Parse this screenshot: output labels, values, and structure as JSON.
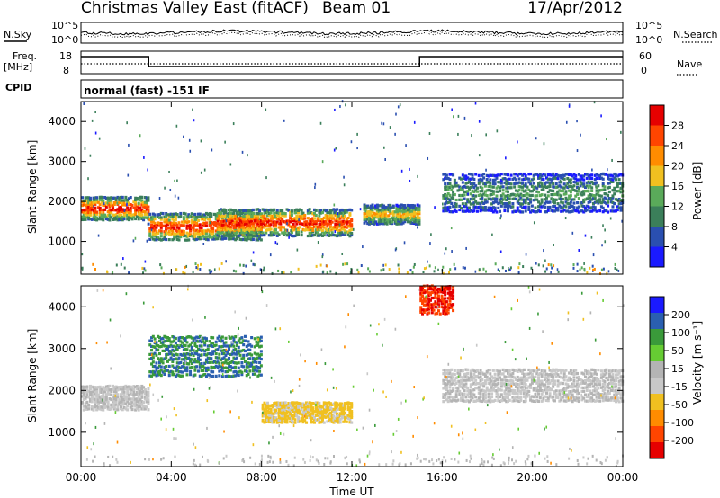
{
  "header": {
    "station": "Christmas Valley East (fitACF)",
    "beam": "Beam 01",
    "date": "17/Apr/2012"
  },
  "top_panels": {
    "nsky_label": "N.Sky",
    "nsearch_label": "N.Search",
    "noise_ticks": [
      "10^5",
      "10^0"
    ],
    "freq_label": "Freq.",
    "freq_unit": "[MHz]",
    "freq_ticks": [
      "18",
      "8"
    ],
    "nave_label": "Nave",
    "nave_ticks": [
      "60",
      "0"
    ],
    "cpid_label": "CPID",
    "cpid_text": "normal (fast) -151 IF"
  },
  "colors": {
    "power_scale": [
      "#1a1aff",
      "#2a4fb0",
      "#3b7f5a",
      "#5aaa5a",
      "#f0c020",
      "#ff8c00",
      "#ff4500",
      "#e60000"
    ],
    "velocity_scale": [
      "#e60000",
      "#ff4500",
      "#ff8c00",
      "#f0c020",
      "#c8c8c8",
      "#b4b4b4",
      "#66cc33",
      "#3a9a3a",
      "#2a5fb0",
      "#1a1aff"
    ]
  },
  "chart_data": [
    {
      "type": "heatmap",
      "title": "",
      "xlabel": "",
      "ylabel": "Slant Range [km]",
      "x_ticks": [
        "00:00",
        "04:00",
        "08:00",
        "12:00",
        "16:00",
        "20:00",
        "00:00"
      ],
      "y_ticks": [
        "1000",
        "2000",
        "3000",
        "4000"
      ],
      "ylim": [
        180,
        4500
      ],
      "colorbar": {
        "label": "Power [dB]",
        "ticks": [
          "28",
          "24",
          "20",
          "16",
          "12",
          "8",
          "4"
        ],
        "range": [
          0,
          30
        ]
      },
      "features": [
        {
          "hours": [
            0,
            3
          ],
          "range_km": [
            1500,
            2100
          ],
          "peak_dB": 28
        },
        {
          "hours": [
            3,
            8
          ],
          "range_km": [
            1000,
            1700
          ],
          "peak_dB": 28
        },
        {
          "hours": [
            6,
            12
          ],
          "range_km": [
            1100,
            1800
          ],
          "peak_dB": 28
        },
        {
          "hours": [
            12.5,
            15
          ],
          "range_km": [
            1400,
            1900
          ],
          "peak_dB": 20
        },
        {
          "hours": [
            16,
            24
          ],
          "range_km": [
            1700,
            2700
          ],
          "peak_dB": 12
        }
      ]
    },
    {
      "type": "heatmap",
      "title": "",
      "xlabel": "Time UT",
      "ylabel": "Slant Range [km]",
      "x_ticks": [
        "00:00",
        "04:00",
        "08:00",
        "12:00",
        "16:00",
        "20:00",
        "00:00"
      ],
      "y_ticks": [
        "1000",
        "2000",
        "3000",
        "4000"
      ],
      "ylim": [
        180,
        4500
      ],
      "colorbar": {
        "label": "Velocity [m s⁻¹]",
        "ticks": [
          "200",
          "100",
          "50",
          "15",
          "-15",
          "-50",
          "-100",
          "-200"
        ],
        "range": [
          -250,
          250
        ]
      },
      "features": [
        {
          "hours": [
            0,
            3
          ],
          "range_km": [
            1500,
            2100
          ],
          "velocity": 0
        },
        {
          "hours": [
            3,
            8
          ],
          "range_km": [
            2300,
            3300
          ],
          "velocity": 150
        },
        {
          "hours": [
            8,
            12
          ],
          "range_km": [
            1200,
            1700
          ],
          "velocity": -60
        },
        {
          "hours": [
            15,
            16.5
          ],
          "range_km": [
            3800,
            4500
          ],
          "velocity": -200
        },
        {
          "hours": [
            16,
            24
          ],
          "range_km": [
            1700,
            2500
          ],
          "velocity": 0
        }
      ]
    }
  ]
}
